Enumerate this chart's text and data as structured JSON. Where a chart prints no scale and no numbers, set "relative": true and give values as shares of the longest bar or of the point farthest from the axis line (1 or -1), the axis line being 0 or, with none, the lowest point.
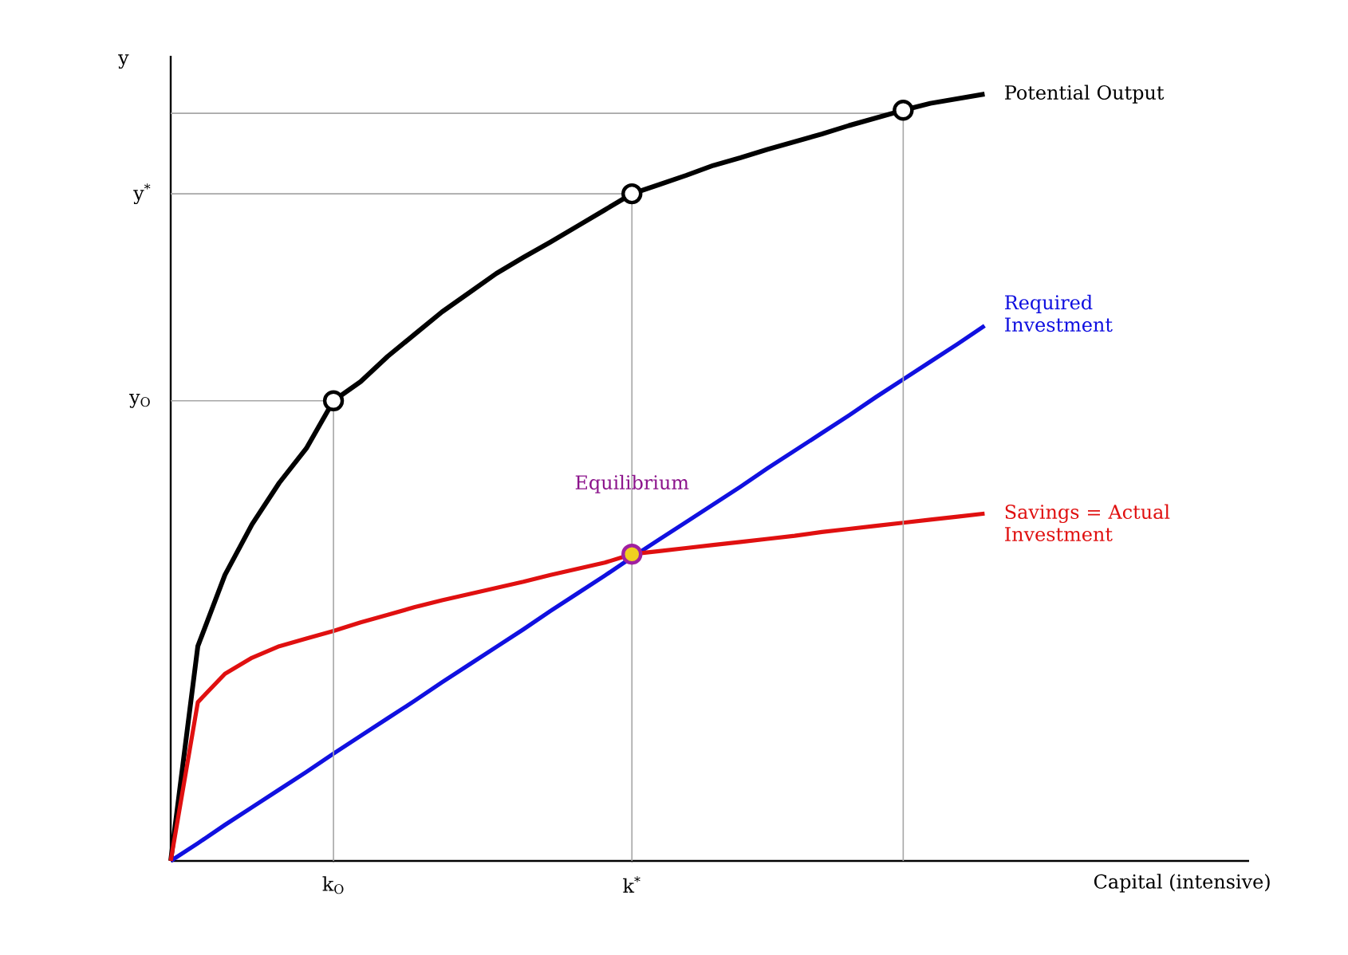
{
  "chart_data": {
    "type": "line",
    "relative": true,
    "ylabel": "y",
    "legend": false,
    "grid": "x",
    "categories": [
      null,
      null,
      null,
      null,
      null,
      null,
      "k$_{O}$",
      null,
      null,
      null,
      null,
      null,
      null,
      null,
      null,
      null,
      null,
      "k$^{*}$",
      null,
      null,
      null,
      null,
      null,
      null,
      null,
      null,
      null,
      null,
      null,
      null,
      null
    ],
    "series": [
      {
        "name": "Potential Output",
        "color": "#000000",
        "values": [
          0,
          0.28,
          0.373,
          0.439,
          0.493,
          0.538,
          0.6,
          0.625,
          0.658,
          0.687,
          0.716,
          0.741,
          0.766,
          0.787,
          0.807,
          0.828,
          0.849,
          0.87,
          0.882,
          0.894,
          0.907,
          0.917,
          0.928,
          0.938,
          0.948,
          0.959,
          0.969,
          0.979,
          0.988,
          0.994,
          1
        ]
      },
      {
        "name": "Required Investment",
        "color": "#1010e0",
        "values": [
          0,
          0.023,
          0.047,
          0.07,
          0.093,
          0.116,
          0.14,
          0.163,
          0.186,
          0.209,
          0.233,
          0.256,
          0.279,
          0.302,
          0.326,
          0.349,
          0.372,
          0.396,
          0.419,
          0.442,
          0.465,
          0.488,
          0.512,
          0.535,
          0.558,
          0.581,
          0.605,
          0.628,
          0.651,
          0.674,
          0.698
        ]
      },
      {
        "name": "Savings = Actual Investment",
        "color": "#e01010",
        "values": [
          0,
          0.207,
          0.244,
          0.265,
          0.28,
          0.29,
          0.3,
          0.311,
          0.321,
          0.331,
          0.34,
          0.348,
          0.356,
          0.364,
          0.373,
          0.381,
          0.389,
          0.4,
          0.404,
          0.408,
          0.412,
          0.416,
          0.42,
          0.424,
          0.429,
          0.433,
          0.437,
          0.441,
          0.445,
          0.449,
          0.453
        ]
      },
      {
        "type": "scatter",
        "marker": "circle",
        "color": "#ffffff",
        "values": [
          null,
          null,
          null,
          null,
          null,
          null,
          0.6,
          null,
          null,
          null,
          null,
          null,
          null,
          null,
          null,
          null,
          null,
          0.87,
          null,
          null,
          null,
          null,
          null,
          null,
          null,
          null,
          null,
          0.979,
          null,
          null,
          null
        ]
      },
      {
        "type": "scatter",
        "marker": "circle",
        "color": "#f0d020",
        "values": [
          null,
          null,
          null,
          null,
          null,
          null,
          null,
          null,
          null,
          null,
          null,
          null,
          null,
          null,
          null,
          null,
          null,
          0.4,
          null,
          null,
          null,
          null,
          null,
          null,
          null,
          null,
          null,
          null,
          null,
          null,
          null
        ]
      }
    ],
    "annotations": [
      "Equilibrium",
      "Capital (intensive)"
    ],
    "ref_lines": [
      {
        "axis": "y",
        "value": 0.975,
        "label": null
      },
      {
        "axis": "y",
        "value": 0.87,
        "label": "y$^{*}$"
      },
      {
        "axis": "y",
        "value": 0.6,
        "label": "y$_{O}$"
      }
    ]
  }
}
